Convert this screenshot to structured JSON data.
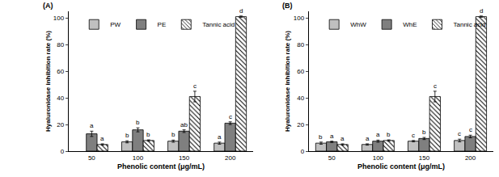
{
  "chart_data": [
    {
      "type": "bar",
      "title": "(A)",
      "x_label": "Phenolic content (μg/mL)",
      "y_label": "Hyaluronidase inhibition rate (%)",
      "categories": [
        "50",
        "100",
        "150",
        "200"
      ],
      "series": [
        {
          "name": "PW",
          "color": "#c0c0c0",
          "values": [
            null,
            7,
            7.5,
            6
          ],
          "errors": [
            null,
            0.8,
            0.8,
            0.8
          ],
          "letters": [
            null,
            "b",
            "b",
            "a"
          ]
        },
        {
          "name": "PE",
          "color": "#7f7f7f",
          "values": [
            13,
            16,
            15,
            21
          ],
          "errors": [
            2,
            1.5,
            1,
            1
          ],
          "letters": [
            "a",
            "b",
            "ab",
            "c"
          ]
        },
        {
          "name": "Tannic acid",
          "color": "#ffffff",
          "marker": "hatch",
          "values": [
            5,
            8,
            41,
            101
          ],
          "errors": [
            0.5,
            0.5,
            4,
            0.5
          ],
          "letters": [
            "a",
            "b",
            "c",
            "d"
          ]
        }
      ],
      "ylim": [
        0,
        105
      ],
      "yticks": [
        0,
        20,
        40,
        60,
        80,
        100
      ],
      "legend": "upper left",
      "grid": false
    },
    {
      "type": "bar",
      "title": "(B)",
      "x_label": "Phenolic content (μg/mL)",
      "y_label": "Hyaluronidase inhibition rate (%)",
      "categories": [
        "50",
        "100",
        "150",
        "200"
      ],
      "series": [
        {
          "name": "WhW",
          "color": "#c0c0c0",
          "values": [
            6,
            5,
            7.5,
            8
          ],
          "errors": [
            0.8,
            0.5,
            0.5,
            1
          ],
          "letters": [
            "b",
            "a",
            "c",
            "c"
          ]
        },
        {
          "name": "WhE",
          "color": "#7f7f7f",
          "values": [
            7,
            7.5,
            9.5,
            11
          ],
          "errors": [
            0.5,
            0.8,
            0.8,
            1
          ],
          "letters": [
            "a",
            "a",
            "b",
            "c"
          ]
        },
        {
          "name": "Tannic acid",
          "color": "#ffffff",
          "marker": "hatch",
          "values": [
            5,
            8,
            41,
            101
          ],
          "errors": [
            0.5,
            0.5,
            4,
            0.5
          ],
          "letters": [
            "a",
            "b",
            "c",
            "d"
          ]
        }
      ],
      "ylim": [
        0,
        105
      ],
      "yticks": [
        0,
        20,
        40,
        60,
        80,
        100
      ],
      "legend": "upper left",
      "grid": false
    }
  ]
}
